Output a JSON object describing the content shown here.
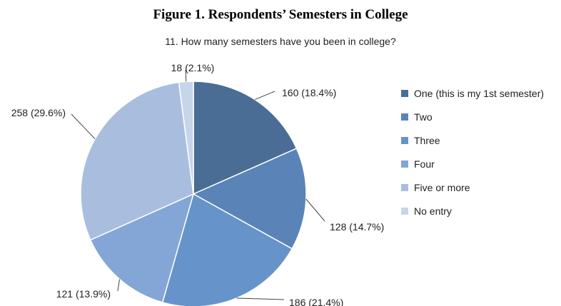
{
  "figure_title": "Figure 1. Respondents’ Semesters in College",
  "chart_data": {
    "type": "pie",
    "title": "11. How many semesters have you been in college?",
    "categories": [
      "One (this is my 1st semester)",
      "Two",
      "Three",
      "Four",
      "Five or more",
      "No entry"
    ],
    "values": [
      160,
      128,
      186,
      121,
      258,
      18
    ],
    "data_labels": [
      "160 (18.4%)",
      "128 (14.7%)",
      "186 (21.4%)",
      "121 (13.9%)",
      "258 (29.6%)",
      "18 (2.1%)"
    ],
    "colors": [
      "#4a6d96",
      "#5a84b8",
      "#6693c9",
      "#84a6d6",
      "#a9bedf",
      "#c7d5ea"
    ],
    "legend_placement": "right"
  }
}
